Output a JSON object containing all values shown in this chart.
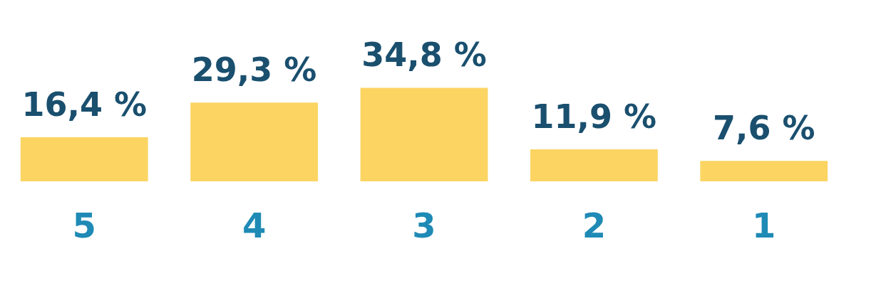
{
  "chart_data": {
    "type": "bar",
    "categories": [
      "5",
      "4",
      "3",
      "2",
      "1"
    ],
    "values": [
      16.4,
      29.3,
      34.8,
      11.9,
      7.6
    ],
    "value_labels": [
      "16,4 %",
      "29,3 %",
      "34,8 %",
      "11,9 %",
      "7,6 %"
    ],
    "color": "#fbd462"
  }
}
